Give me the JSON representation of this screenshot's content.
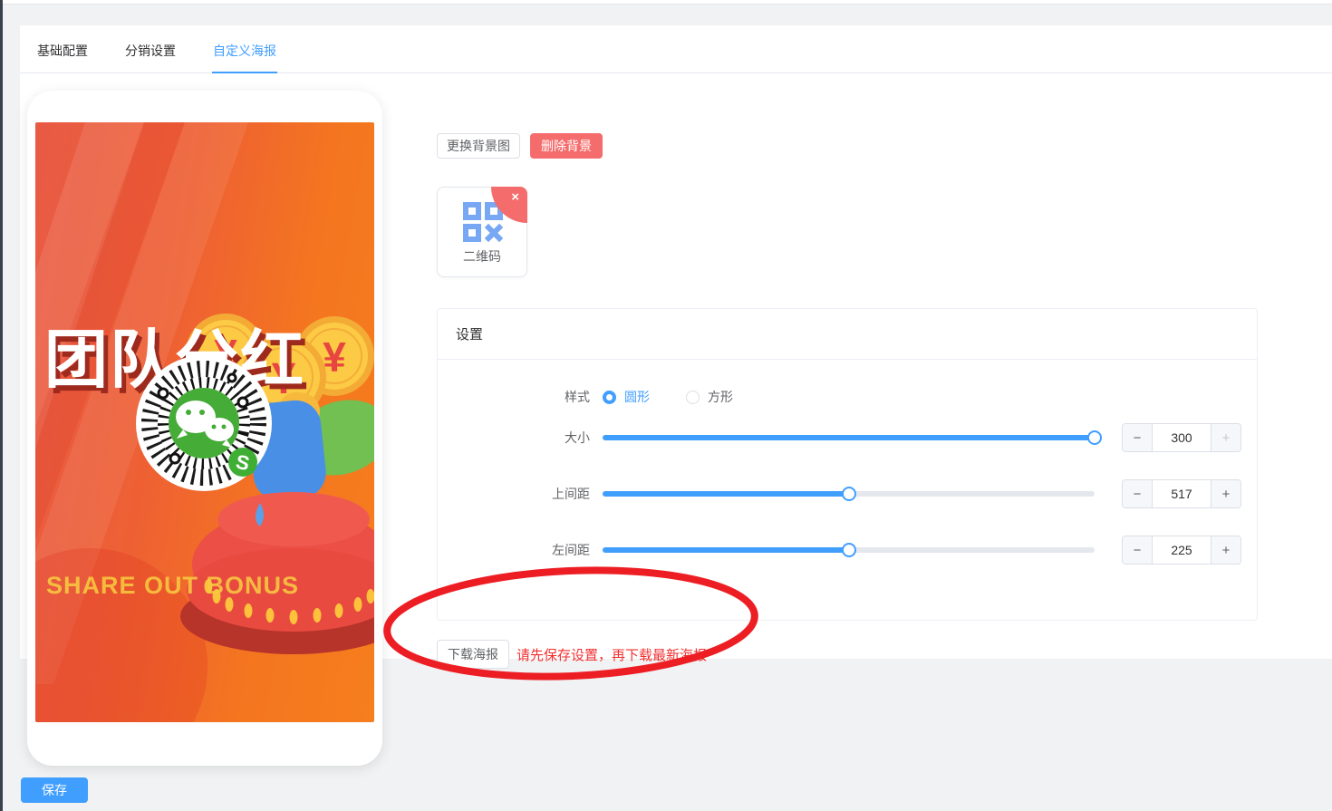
{
  "tabs": [
    {
      "label": "基础配置",
      "active": false
    },
    {
      "label": "分销设置",
      "active": false
    },
    {
      "label": "自定义海报",
      "active": true
    }
  ],
  "poster": {
    "title": "团队分红",
    "subtitle": "SHARE OUT BONUS",
    "coin_symbol": "¥"
  },
  "toolbar": {
    "change_bg": "更换背景图",
    "delete_bg": "删除背景"
  },
  "qr_asset": {
    "label": "二维码",
    "close": "×"
  },
  "settings": {
    "title": "设置",
    "style": {
      "label": "样式",
      "options": [
        {
          "label": "圆形",
          "selected": true
        },
        {
          "label": "方形",
          "selected": false
        }
      ]
    },
    "sliders": [
      {
        "label": "大小",
        "value": "300",
        "percent": 100,
        "plus_disabled": true
      },
      {
        "label": "上间距",
        "value": "517",
        "percent": 50,
        "plus_disabled": false
      },
      {
        "label": "左间距",
        "value": "225",
        "percent": 50,
        "plus_disabled": false
      }
    ],
    "stepper": {
      "minus": "−",
      "plus": "+"
    }
  },
  "download": {
    "button": "下载海报",
    "warning": "请先保存设置，再下载最新海报"
  },
  "footer": {
    "save": "保存"
  },
  "colors": {
    "accent": "#409eff",
    "danger": "#f56c6c",
    "warning_text": "#f23030",
    "annotation": "#ec1e24",
    "qr_icon_blue": "#78a8f4",
    "poster_orange": "#f4761f"
  }
}
